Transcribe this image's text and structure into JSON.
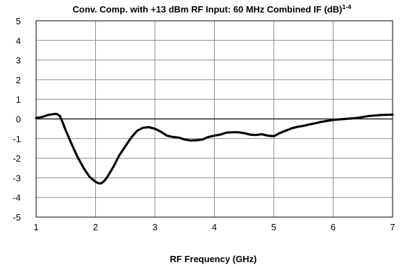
{
  "chart_data": {
    "type": "line",
    "title": "Conv. Comp. with +13 dBm RF Input: 60 MHz Combined IF (dB)",
    "title_superscript": "1-4",
    "xlabel": "RF Frequency (GHz)",
    "ylabel": "",
    "xlim": [
      1,
      7
    ],
    "ylim": [
      -5,
      5
    ],
    "xticks": [
      "1",
      "2",
      "3",
      "4",
      "5",
      "6",
      "7"
    ],
    "yticks": [
      "5",
      "4",
      "3",
      "2",
      "1",
      "0",
      "-1",
      "-2",
      "-3",
      "-4",
      "-5"
    ],
    "grid": true,
    "legend": "none",
    "series": [
      {
        "color": "#000000",
        "x": [
          1.0,
          1.1,
          1.2,
          1.3,
          1.35,
          1.4,
          1.45,
          1.5,
          1.6,
          1.7,
          1.8,
          1.9,
          2.0,
          2.05,
          2.1,
          2.15,
          2.2,
          2.3,
          2.4,
          2.5,
          2.6,
          2.7,
          2.8,
          2.9,
          3.0,
          3.1,
          3.2,
          3.3,
          3.4,
          3.5,
          3.6,
          3.7,
          3.8,
          3.9,
          4.0,
          4.1,
          4.2,
          4.3,
          4.4,
          4.5,
          4.6,
          4.7,
          4.8,
          4.9,
          5.0,
          5.1,
          5.2,
          5.3,
          5.4,
          5.5,
          5.6,
          5.7,
          5.8,
          5.9,
          6.0,
          6.2,
          6.4,
          6.6,
          6.8,
          7.0
        ],
        "y": [
          0.05,
          0.1,
          0.2,
          0.25,
          0.25,
          0.15,
          -0.2,
          -0.6,
          -1.3,
          -1.95,
          -2.5,
          -2.95,
          -3.2,
          -3.28,
          -3.28,
          -3.15,
          -2.95,
          -2.45,
          -1.85,
          -1.4,
          -0.95,
          -0.6,
          -0.45,
          -0.42,
          -0.5,
          -0.65,
          -0.85,
          -0.92,
          -0.95,
          -1.05,
          -1.1,
          -1.08,
          -1.05,
          -0.92,
          -0.85,
          -0.8,
          -0.7,
          -0.68,
          -0.68,
          -0.72,
          -0.8,
          -0.82,
          -0.78,
          -0.85,
          -0.88,
          -0.72,
          -0.6,
          -0.48,
          -0.4,
          -0.35,
          -0.28,
          -0.22,
          -0.15,
          -0.1,
          -0.05,
          0.0,
          0.05,
          0.15,
          0.2,
          0.22
        ]
      }
    ]
  }
}
